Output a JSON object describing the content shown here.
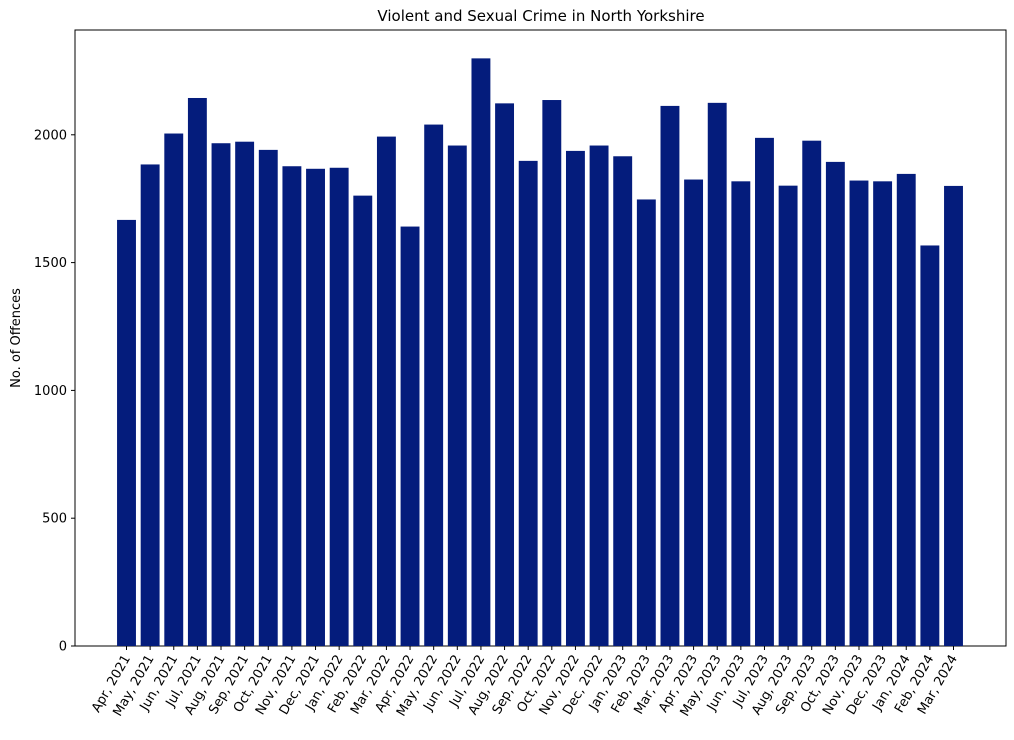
{
  "chart_data": {
    "type": "bar",
    "title": "Violent and Sexual Crime in North Yorkshire",
    "xlabel": "",
    "ylabel": "No. of Offences",
    "ylim": [
      0,
      2410
    ],
    "yticks": [
      0,
      500,
      1000,
      1500,
      2000
    ],
    "bar_color": "#041c7c",
    "grid": false,
    "categories": [
      "Apr, 2021",
      "May, 2021",
      "Jun, 2021",
      "Jul, 2021",
      "Aug, 2021",
      "Sep, 2021",
      "Oct, 2021",
      "Nov, 2021",
      "Dec, 2021",
      "Jan, 2022",
      "Feb, 2022",
      "Mar, 2022",
      "Apr, 2022",
      "May, 2022",
      "Jun, 2022",
      "Jul, 2022",
      "Aug, 2022",
      "Sep, 2022",
      "Oct, 2022",
      "Nov, 2022",
      "Dec, 2022",
      "Jan, 2023",
      "Feb, 2023",
      "Mar, 2023",
      "Apr, 2023",
      "May, 2023",
      "Jun, 2023",
      "Jul, 2023",
      "Aug, 2023",
      "Sep, 2023",
      "Oct, 2023",
      "Nov, 2023",
      "Dec, 2023",
      "Jan, 2024",
      "Feb, 2024",
      "Mar, 2024"
    ],
    "values": [
      1667,
      1884,
      2005,
      2144,
      1967,
      1973,
      1941,
      1877,
      1867,
      1871,
      1762,
      1993,
      1641,
      2040,
      1958,
      2299,
      2123,
      1898,
      2136,
      1937,
      1958,
      1916,
      1747,
      2113,
      1825,
      2125,
      1818,
      1988,
      1801,
      1977,
      1894,
      1821,
      1818,
      1847,
      1567,
      1800
    ]
  }
}
